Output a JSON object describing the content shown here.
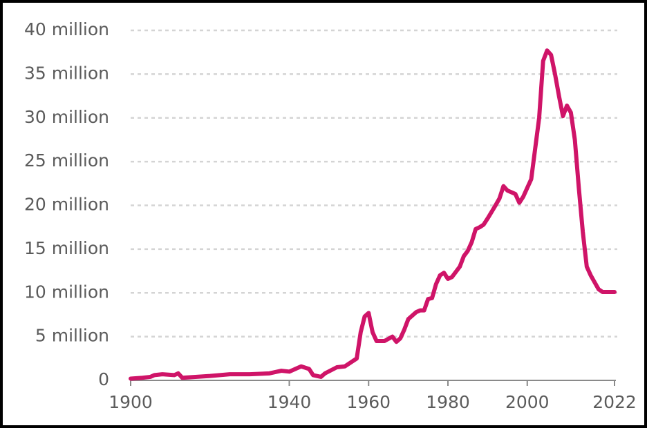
{
  "chart_data": {
    "type": "line",
    "x": [
      1900,
      1903,
      1905,
      1906,
      1908,
      1911,
      1912,
      1913,
      1920,
      1925,
      1930,
      1935,
      1938,
      1940,
      1942,
      1943,
      1945,
      1946,
      1948,
      1949,
      1952,
      1954,
      1957,
      1958,
      1959,
      1960,
      1961,
      1962,
      1964,
      1966,
      1967,
      1968,
      1969,
      1970,
      1972,
      1973,
      1974,
      1975,
      1976,
      1977,
      1978,
      1979,
      1980,
      1981,
      1983,
      1984,
      1985,
      1986,
      1987,
      1988,
      1989,
      1990,
      1992,
      1993,
      1994,
      1995,
      1997,
      1998,
      1999,
      2000,
      2001,
      2003,
      2004,
      2005,
      2006,
      2007,
      2008,
      2009,
      2010,
      2011,
      2012,
      2013,
      2014,
      2015,
      2016,
      2017,
      2018,
      2019,
      2021,
      2022
    ],
    "series": [
      {
        "color": "#cf1468",
        "values": [
          200000,
          300000,
          400000,
          600000,
          700000,
          600000,
          800000,
          300000,
          500000,
          700000,
          700000,
          800000,
          1100000,
          1000000,
          1400000,
          1600000,
          1300000,
          600000,
          400000,
          800000,
          1500000,
          1600000,
          2500000,
          5500000,
          7300000,
          7700000,
          5500000,
          4500000,
          4500000,
          5000000,
          4400000,
          4800000,
          5800000,
          7000000,
          7800000,
          8000000,
          8000000,
          9300000,
          9400000,
          11000000,
          12000000,
          12300000,
          11600000,
          11800000,
          13000000,
          14200000,
          14800000,
          15800000,
          17300000,
          17500000,
          17800000,
          18500000,
          20000000,
          20800000,
          22200000,
          21700000,
          21300000,
          20300000,
          21000000,
          22000000,
          23000000,
          30000000,
          36500000,
          37700000,
          37200000,
          35000000,
          32500000,
          30200000,
          31400000,
          30600000,
          27500000,
          22000000,
          17000000,
          13000000,
          12000000,
          11200000,
          10400000,
          10100000,
          10100000,
          10100000
        ]
      }
    ],
    "xlim": [
      1900,
      2022
    ],
    "xticks": [
      1900,
      1940,
      1960,
      1980,
      2000,
      2022
    ],
    "ylim": [
      0,
      40000000
    ],
    "yticks": [
      0,
      {
        "value": 5000000,
        "label": "5 million"
      },
      {
        "value": 10000000,
        "label": "10 million"
      },
      {
        "value": 15000000,
        "label": "15 million"
      },
      {
        "value": 20000000,
        "label": "20 million"
      },
      {
        "value": 25000000,
        "label": "25 million"
      },
      {
        "value": 30000000,
        "label": "30 million"
      },
      {
        "value": 35000000,
        "label": "35 million"
      },
      {
        "value": 40000000,
        "label": "40 million"
      }
    ],
    "grid": true
  }
}
